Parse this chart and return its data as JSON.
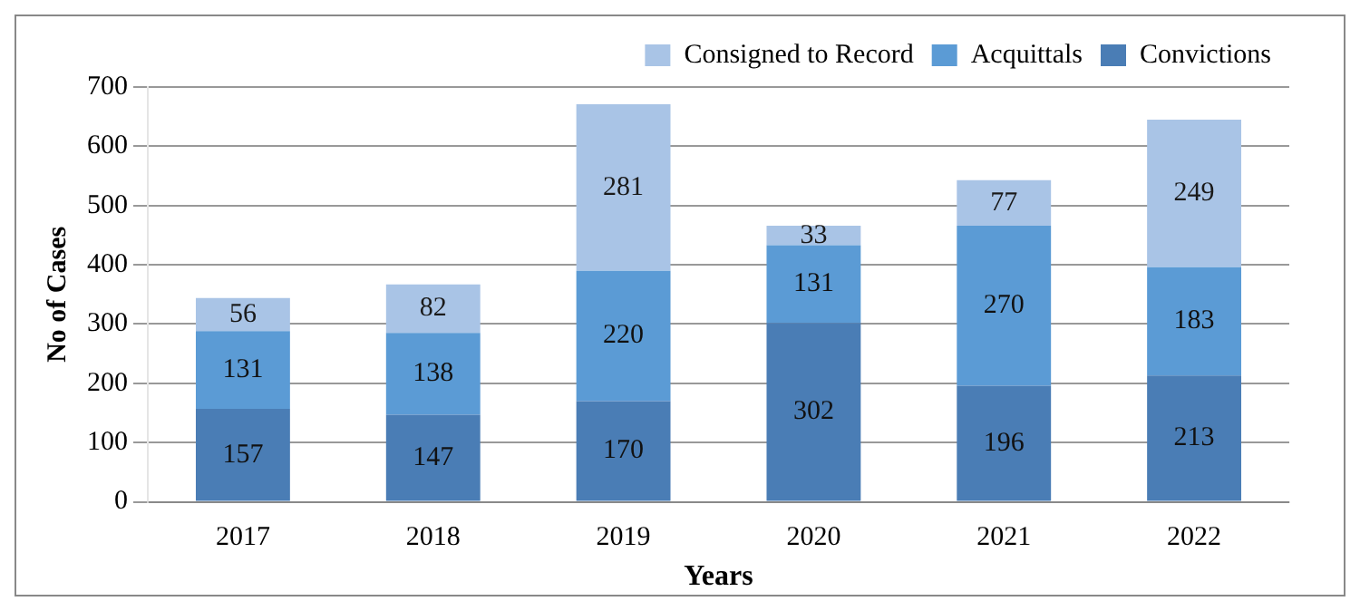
{
  "chart_data": {
    "type": "bar",
    "xlabel": "Years",
    "ylabel": "No of Cases",
    "categories": [
      "2017",
      "2018",
      "2019",
      "2020",
      "2021",
      "2022"
    ],
    "series": [
      {
        "name": "Convictions",
        "color": "#4a7db5",
        "values": [
          157,
          147,
          170,
          302,
          196,
          213
        ]
      },
      {
        "name": "Acquittals",
        "color": "#5b9bd5",
        "values": [
          131,
          138,
          220,
          131,
          270,
          183
        ]
      },
      {
        "name": "Consigned to Record",
        "color": "#a9c4e6",
        "values": [
          56,
          82,
          281,
          33,
          77,
          249
        ]
      }
    ],
    "stacked": true,
    "ylim": [
      0,
      700
    ],
    "yticks": [
      0,
      100,
      200,
      300,
      400,
      500,
      600,
      700
    ],
    "grid": "y",
    "legend": "top right",
    "data_labels": true
  }
}
